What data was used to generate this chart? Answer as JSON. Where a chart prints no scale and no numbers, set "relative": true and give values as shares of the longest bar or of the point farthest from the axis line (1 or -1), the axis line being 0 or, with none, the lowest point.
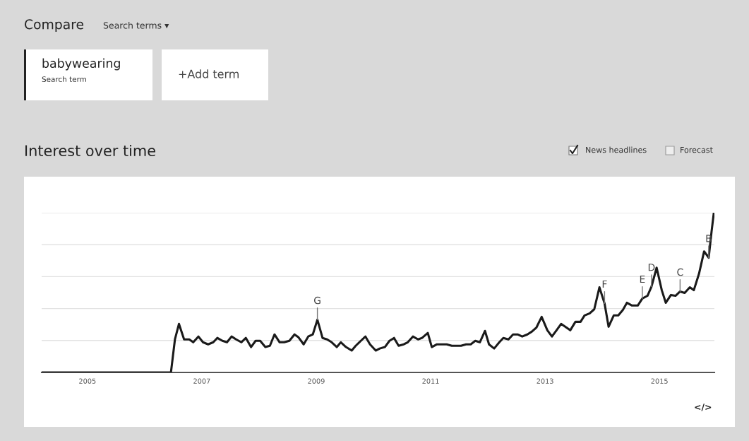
{
  "chart_data": {
    "type": "line",
    "title": "Interest over time",
    "relative": true,
    "x": [
      2004.2,
      2006.46,
      2006.53,
      2006.6,
      2006.69,
      2006.78,
      2006.85,
      2006.94,
      2007.02,
      2007.11,
      2007.2,
      2007.27,
      2007.36,
      2007.44,
      2007.52,
      2007.6,
      2007.69,
      2007.77,
      2007.86,
      2007.94,
      2008.02,
      2008.11,
      2008.19,
      2008.27,
      2008.36,
      2008.44,
      2008.53,
      2008.62,
      2008.69,
      2008.78,
      2008.86,
      2008.94,
      2009.02,
      2009.11,
      2009.19,
      2009.27,
      2009.36,
      2009.43,
      2009.52,
      2009.62,
      2009.69,
      2009.78,
      2009.86,
      2009.94,
      2010.04,
      2010.11,
      2010.2,
      2010.28,
      2010.36,
      2010.44,
      2010.53,
      2010.6,
      2010.69,
      2010.78,
      2010.85,
      2010.95,
      2011.02,
      2011.11,
      2011.21,
      2011.28,
      2011.37,
      2011.53,
      2011.62,
      2011.7,
      2011.78,
      2011.86,
      2011.95,
      2012.02,
      2012.11,
      2012.2,
      2012.27,
      2012.36,
      2012.44,
      2012.52,
      2012.6,
      2012.69,
      2012.77,
      2012.85,
      2012.94,
      2013.04,
      2013.12,
      2013.2,
      2013.28,
      2013.37,
      2013.44,
      2013.53,
      2013.62,
      2013.69,
      2013.78,
      2013.86,
      2013.95,
      2014.04,
      2014.11,
      2014.2,
      2014.28,
      2014.36,
      2014.43,
      2014.52,
      2014.62,
      2014.7,
      2014.79,
      2014.86,
      2014.95,
      2015.04,
      2015.11,
      2015.2,
      2015.28,
      2015.36,
      2015.44,
      2015.53,
      2015.6,
      2015.69,
      2015.78,
      2015.86,
      2015.91,
      2015.95
    ],
    "series": [
      {
        "color": "#1a1a1a",
        "values": [
          0,
          0,
          0.207,
          0.304,
          0.207,
          0.207,
          0.189,
          0.225,
          0.189,
          0.176,
          0.189,
          0.216,
          0.198,
          0.189,
          0.225,
          0.207,
          0.189,
          0.216,
          0.159,
          0.198,
          0.198,
          0.159,
          0.167,
          0.238,
          0.189,
          0.189,
          0.198,
          0.238,
          0.22,
          0.176,
          0.225,
          0.238,
          0.33,
          0.216,
          0.207,
          0.189,
          0.159,
          0.189,
          0.159,
          0.137,
          0.167,
          0.198,
          0.225,
          0.176,
          0.137,
          0.15,
          0.159,
          0.198,
          0.216,
          0.167,
          0.176,
          0.189,
          0.225,
          0.207,
          0.216,
          0.247,
          0.159,
          0.176,
          0.176,
          0.176,
          0.167,
          0.167,
          0.176,
          0.176,
          0.198,
          0.189,
          0.26,
          0.176,
          0.15,
          0.189,
          0.216,
          0.207,
          0.238,
          0.238,
          0.225,
          0.238,
          0.256,
          0.282,
          0.348,
          0.264,
          0.225,
          0.264,
          0.304,
          0.282,
          0.264,
          0.317,
          0.317,
          0.357,
          0.37,
          0.396,
          0.533,
          0.432,
          0.286,
          0.357,
          0.357,
          0.392,
          0.436,
          0.419,
          0.419,
          0.463,
          0.48,
          0.537,
          0.656,
          0.515,
          0.436,
          0.485,
          0.48,
          0.507,
          0.498,
          0.533,
          0.515,
          0.617,
          0.758,
          0.718,
          0.881,
          1
        ]
      }
    ],
    "xlim": [
      2004.2,
      2015.96
    ],
    "xticks": [
      2005,
      2007,
      2009,
      2011,
      2013,
      2015
    ],
    "grid": "y",
    "marker": "none",
    "line_style": "solid",
    "legend": false,
    "annotations": [
      {
        "text": "G",
        "x": 2009.02,
        "y": 0.33
      },
      {
        "text": "F",
        "x": 2014.04,
        "y": 0.432
      },
      {
        "text": "E",
        "x": 2014.7,
        "y": 0.463
      },
      {
        "text": "D",
        "x": 2014.86,
        "y": 0.537
      },
      {
        "text": "C",
        "x": 2015.36,
        "y": 0.507
      },
      {
        "text": "B",
        "x": 2015.86,
        "y": 0.718
      },
      "Compare",
      "Search terms ▾",
      "babywearing",
      "Search term",
      "+Add term",
      "News headlines",
      "Forecast",
      "</>"
    ]
  }
}
